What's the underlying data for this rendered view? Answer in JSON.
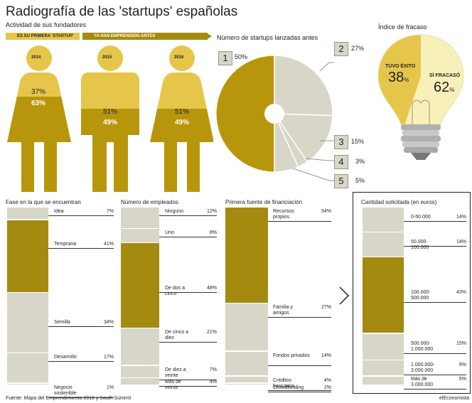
{
  "title": "Radiografía de las 'startups' españolas",
  "colors": {
    "gold_light": "#e6c64a",
    "gold_dark": "#b8960c",
    "olive": "#a48a0e",
    "grey": "#d8d6c8",
    "grey_dark": "#9a9689"
  },
  "founders": {
    "subtitle": "Actividad de sus fundadores",
    "legend_first": "ES SU PRIMERA 'STARTUP'",
    "legend_before": "YA HAN EMPRENDIDO ANTES",
    "figures": [
      {
        "year": "2014",
        "first": "37%",
        "before": "63%"
      },
      {
        "year": "2015",
        "first": "51%",
        "before": "49%"
      },
      {
        "year": "2016",
        "first": "51%",
        "before": "49%"
      }
    ]
  },
  "pie": {
    "title": "Número de startups lanzadas antes",
    "items": [
      {
        "num": "1",
        "pct": "50%"
      },
      {
        "num": "2",
        "pct": "27%"
      },
      {
        "num": "3",
        "pct": "15%"
      },
      {
        "num": "4",
        "pct": "3%"
      },
      {
        "num": "5",
        "pct": "5%"
      }
    ]
  },
  "failure": {
    "title": "Índice de fracaso",
    "success_label": "TUVO ÉXITO",
    "success_value": "38",
    "fail_label": "SÍ FRACASÓ",
    "fail_value": "62",
    "unit": "%"
  },
  "chart_data": [
    {
      "type": "bar",
      "title": "Fase en la que se encuentran",
      "categories": [
        "Idea",
        "Temprana",
        "Semilla",
        "Desarrollo",
        "Negocio sostenible"
      ],
      "values": [
        7,
        41,
        34,
        17,
        1
      ],
      "pct_labels": [
        "7%",
        "41%",
        "34%",
        "17%",
        "1%"
      ],
      "highlight": 1
    },
    {
      "type": "bar",
      "title": "Número de empleados",
      "categories": [
        "Ninguno",
        "Uno",
        "De dos a cinco",
        "De cinco a diez",
        "De diez a veinte",
        "Más de veinte"
      ],
      "values": [
        12,
        8,
        48,
        21,
        7,
        4
      ],
      "pct_labels": [
        "12%",
        "8%",
        "48%",
        "21%",
        "7%",
        "4%"
      ],
      "highlight": 2
    },
    {
      "type": "bar",
      "title": "Primera fuente de financiación",
      "categories": [
        "Recursos propios",
        "Familia y amigos",
        "Fondos privados",
        "Créditos bancarios",
        "Crowdfunding"
      ],
      "values": [
        54,
        27,
        14,
        4,
        1
      ],
      "pct_labels": [
        "54%",
        "27%",
        "14%",
        "4%",
        "1%"
      ],
      "highlight": 0
    },
    {
      "type": "bar",
      "title": "Cantidad solicitada (en euros)",
      "categories": [
        "0-50.000",
        "50.000-100.000",
        "100.000-500.000",
        "500.000-1.000.000",
        "1.000.000-3.000.000",
        "Más de 3.000.000"
      ],
      "values": [
        14,
        14,
        43,
        15,
        9,
        5
      ],
      "pct_labels": [
        "14%",
        "14%",
        "43%",
        "15%",
        "9%",
        "5%"
      ],
      "highlight": 2
    }
  ],
  "footer": {
    "source": "Fuente: Mapa del Emprendimiento 2016 y South Summit",
    "brand": "elEconomista"
  }
}
